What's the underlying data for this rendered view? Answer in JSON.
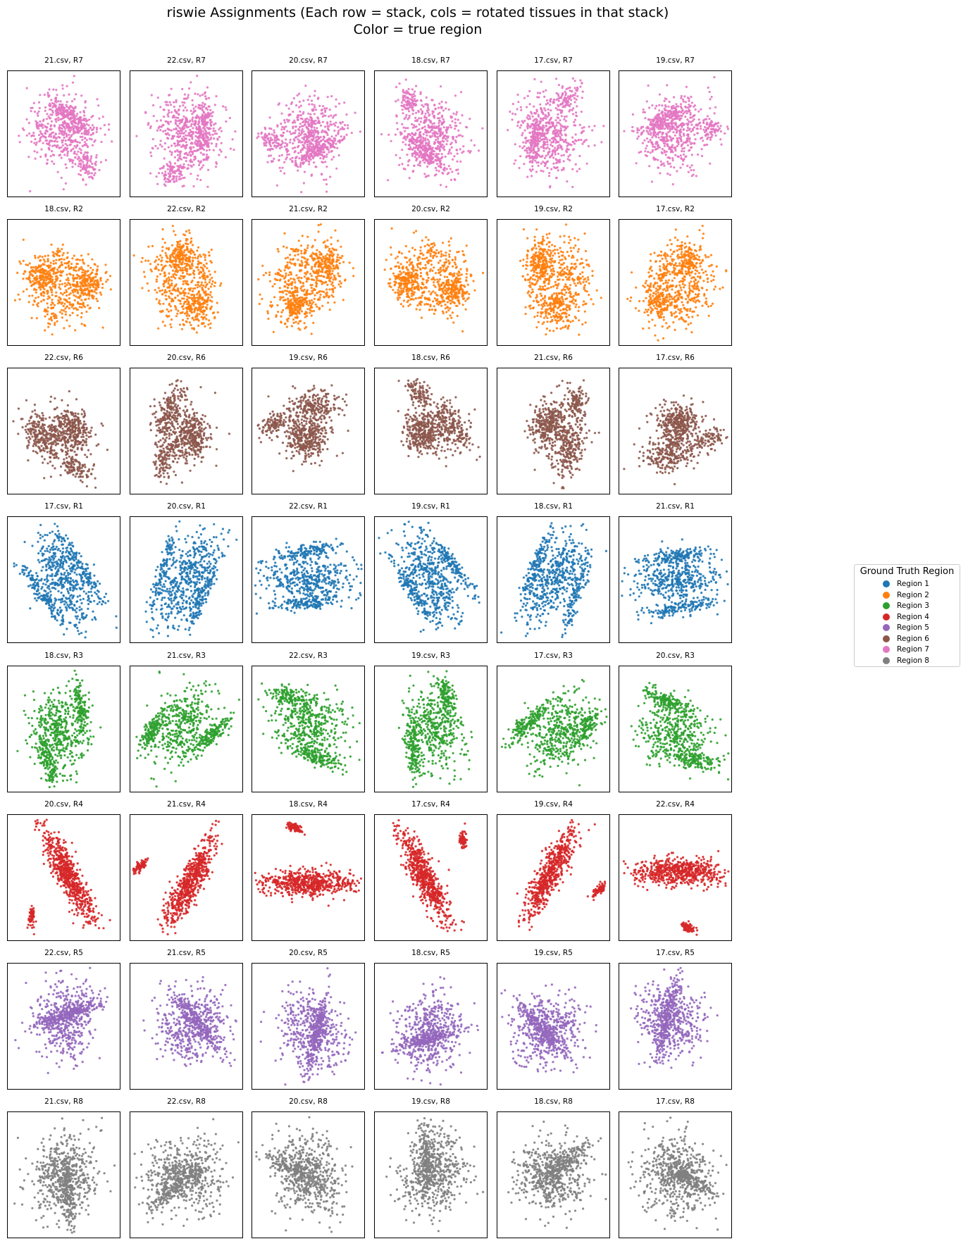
{
  "figure": {
    "title_line1": "riswie Assignments (Each row = stack, cols = rotated tissues in that stack)",
    "title_line2": "Color = true region"
  },
  "legend": {
    "title": "Ground Truth Region",
    "items": [
      {
        "label": "Region 1",
        "color": "#1f77b4"
      },
      {
        "label": "Region 2",
        "color": "#ff7f0e"
      },
      {
        "label": "Region 3",
        "color": "#2ca02c"
      },
      {
        "label": "Region 4",
        "color": "#d62728"
      },
      {
        "label": "Region 5",
        "color": "#9467bd"
      },
      {
        "label": "Region 6",
        "color": "#8c564b"
      },
      {
        "label": "Region 7",
        "color": "#e377c2"
      },
      {
        "label": "Region 8",
        "color": "#7f7f7f"
      }
    ]
  },
  "chart_data": {
    "type": "scatter",
    "description": "Grid of small-multiple scatter plots of rotated tissue spots; axes hidden; each row is a stack, each column a rotated tissue; point color = true region",
    "rows": 8,
    "cols": 6,
    "axes_visible": false,
    "grid": false,
    "legend_position": "right",
    "panels": [
      [
        {
          "title": "21.csv, R7",
          "region": 7
        },
        {
          "title": "22.csv, R7",
          "region": 7
        },
        {
          "title": "20.csv, R7",
          "region": 7
        },
        {
          "title": "18.csv, R7",
          "region": 7
        },
        {
          "title": "17.csv, R7",
          "region": 7
        },
        {
          "title": "19.csv, R7",
          "region": 7
        }
      ],
      [
        {
          "title": "18.csv, R2",
          "region": 2
        },
        {
          "title": "22.csv, R2",
          "region": 2
        },
        {
          "title": "21.csv, R2",
          "region": 2
        },
        {
          "title": "20.csv, R2",
          "region": 2
        },
        {
          "title": "19.csv, R2",
          "region": 2
        },
        {
          "title": "17.csv, R2",
          "region": 2
        }
      ],
      [
        {
          "title": "22.csv, R6",
          "region": 6
        },
        {
          "title": "20.csv, R6",
          "region": 6
        },
        {
          "title": "19.csv, R6",
          "region": 6
        },
        {
          "title": "18.csv, R6",
          "region": 6
        },
        {
          "title": "21.csv, R6",
          "region": 6
        },
        {
          "title": "17.csv, R6",
          "region": 6
        }
      ],
      [
        {
          "title": "17.csv, R1",
          "region": 1
        },
        {
          "title": "20.csv, R1",
          "region": 1
        },
        {
          "title": "22.csv, R1",
          "region": 1
        },
        {
          "title": "19.csv, R1",
          "region": 1
        },
        {
          "title": "18.csv, R1",
          "region": 1
        },
        {
          "title": "21.csv, R1",
          "region": 1
        }
      ],
      [
        {
          "title": "18.csv, R3",
          "region": 3
        },
        {
          "title": "21.csv, R3",
          "region": 3
        },
        {
          "title": "22.csv, R3",
          "region": 3
        },
        {
          "title": "19.csv, R3",
          "region": 3
        },
        {
          "title": "17.csv, R3",
          "region": 3
        },
        {
          "title": "20.csv, R3",
          "region": 3
        }
      ],
      [
        {
          "title": "20.csv, R4",
          "region": 4
        },
        {
          "title": "21.csv, R4",
          "region": 4
        },
        {
          "title": "18.csv, R4",
          "region": 4
        },
        {
          "title": "17.csv, R4",
          "region": 4
        },
        {
          "title": "19.csv, R4",
          "region": 4
        },
        {
          "title": "22.csv, R4",
          "region": 4
        }
      ],
      [
        {
          "title": "22.csv, R5",
          "region": 5
        },
        {
          "title": "21.csv, R5",
          "region": 5
        },
        {
          "title": "20.csv, R5",
          "region": 5
        },
        {
          "title": "18.csv, R5",
          "region": 5
        },
        {
          "title": "19.csv, R5",
          "region": 5
        },
        {
          "title": "17.csv, R5",
          "region": 5
        }
      ],
      [
        {
          "title": "21.csv, R8",
          "region": 8
        },
        {
          "title": "22.csv, R8",
          "region": 8
        },
        {
          "title": "20.csv, R8",
          "region": 8
        },
        {
          "title": "19.csv, R8",
          "region": 8
        },
        {
          "title": "18.csv, R8",
          "region": 8
        },
        {
          "title": "17.csv, R8",
          "region": 8
        }
      ]
    ]
  }
}
